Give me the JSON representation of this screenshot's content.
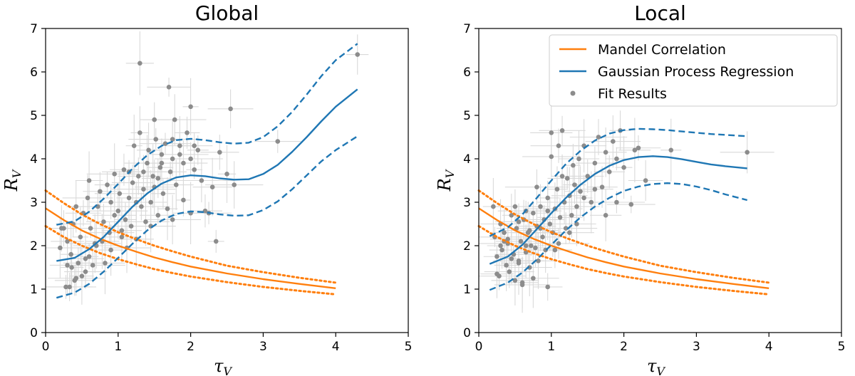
{
  "colors": {
    "mandel": "#ff7f0e",
    "gpr": "#1f77b4",
    "points": "#8c8c8c",
    "errorbars": "#d9d9d9"
  },
  "chart_data": [
    {
      "type": "scatter",
      "title": "Global",
      "xlabel": "τ",
      "xlabel_sub": "V",
      "ylabel": "R",
      "ylabel_sub": "V",
      "xlim": [
        0,
        5
      ],
      "ylim": [
        0,
        7
      ],
      "xticks": [
        "0",
        "1",
        "2",
        "3",
        "4",
        "5"
      ],
      "yticks": [
        "0",
        "1",
        "2",
        "3",
        "4",
        "5",
        "6",
        "7"
      ],
      "grid": false,
      "legend": null,
      "series": [
        {
          "name": "Mandel Correlation",
          "kind": "line",
          "style": "solid",
          "color": "#ff7f0e",
          "x": [
            0,
            0.25,
            0.5,
            0.75,
            1,
            1.25,
            1.5,
            1.75,
            2,
            2.5,
            3,
            3.5,
            4
          ],
          "y": [
            2.86,
            2.59,
            2.35,
            2.16,
            2.0,
            1.86,
            1.73,
            1.62,
            1.52,
            1.36,
            1.23,
            1.12,
            1.02
          ]
        },
        {
          "name": "Mandel Correlation upper",
          "kind": "line",
          "style": "dotted",
          "color": "#ff7f0e",
          "x": [
            0,
            0.25,
            0.5,
            0.75,
            1,
            1.25,
            1.5,
            1.75,
            2,
            2.5,
            3,
            3.5,
            4
          ],
          "y": [
            3.27,
            2.98,
            2.72,
            2.5,
            2.31,
            2.15,
            2.0,
            1.87,
            1.75,
            1.54,
            1.39,
            1.26,
            1.15
          ]
        },
        {
          "name": "Mandel Correlation lower",
          "kind": "line",
          "style": "dotted",
          "color": "#ff7f0e",
          "x": [
            0,
            0.25,
            0.5,
            0.75,
            1,
            1.25,
            1.5,
            1.75,
            2,
            2.5,
            3,
            3.5,
            4
          ],
          "y": [
            2.45,
            2.2,
            2.0,
            1.83,
            1.69,
            1.57,
            1.46,
            1.37,
            1.29,
            1.16,
            1.05,
            0.96,
            0.88
          ]
        },
        {
          "name": "Gaussian Process Regression",
          "kind": "line",
          "style": "solid",
          "color": "#1f77b4",
          "x": [
            0.15,
            0.4,
            0.6,
            0.8,
            1.0,
            1.2,
            1.4,
            1.6,
            1.8,
            2.0,
            2.2,
            2.4,
            2.6,
            2.8,
            3.0,
            3.2,
            3.4,
            3.6,
            3.8,
            4.0,
            4.3
          ],
          "y": [
            1.65,
            1.72,
            1.92,
            2.2,
            2.55,
            2.9,
            3.2,
            3.43,
            3.57,
            3.62,
            3.6,
            3.55,
            3.52,
            3.53,
            3.65,
            3.86,
            4.16,
            4.5,
            4.86,
            5.2,
            5.6
          ]
        },
        {
          "name": "Gaussian Process Regression upper",
          "kind": "line",
          "style": "dashed",
          "color": "#1f77b4",
          "x": [
            0.15,
            0.4,
            0.6,
            0.8,
            1.0,
            1.2,
            1.4,
            1.6,
            1.8,
            2.0,
            2.2,
            2.4,
            2.6,
            2.8,
            3.0,
            3.2,
            3.4,
            3.6,
            3.8,
            4.0,
            4.3
          ],
          "y": [
            2.48,
            2.56,
            2.78,
            3.08,
            3.42,
            3.78,
            4.08,
            4.3,
            4.43,
            4.46,
            4.43,
            4.38,
            4.35,
            4.37,
            4.5,
            4.75,
            5.08,
            5.48,
            5.9,
            6.27,
            6.65
          ]
        },
        {
          "name": "Gaussian Process Regression lower",
          "kind": "line",
          "style": "dashed",
          "color": "#1f77b4",
          "x": [
            0.15,
            0.4,
            0.6,
            0.8,
            1.0,
            1.2,
            1.4,
            1.6,
            1.8,
            2.0,
            2.2,
            2.4,
            2.6,
            2.8,
            3.0,
            3.2,
            3.4,
            3.6,
            3.8,
            4.0,
            4.3
          ],
          "y": [
            0.8,
            0.92,
            1.12,
            1.4,
            1.72,
            2.05,
            2.35,
            2.58,
            2.73,
            2.79,
            2.77,
            2.72,
            2.69,
            2.7,
            2.82,
            3.02,
            3.3,
            3.62,
            3.94,
            4.2,
            4.52
          ]
        },
        {
          "name": "Fit Results",
          "kind": "points",
          "color": "#8c8c8c",
          "x": [
            0.2,
            0.25,
            0.28,
            0.3,
            0.33,
            0.35,
            0.38,
            0.4,
            0.42,
            0.45,
            0.48,
            0.5,
            0.52,
            0.55,
            0.58,
            0.6,
            0.62,
            0.65,
            0.7,
            0.72,
            0.75,
            0.78,
            0.8,
            0.85,
            0.88,
            0.9,
            0.95,
            1.0,
            1.02,
            1.05,
            1.08,
            1.1,
            1.12,
            1.15,
            1.18,
            1.2,
            1.22,
            1.25,
            1.28,
            1.3,
            1.32,
            1.35,
            1.38,
            1.4,
            1.42,
            1.45,
            1.48,
            1.5,
            1.52,
            1.55,
            1.58,
            1.6,
            1.62,
            1.65,
            1.68,
            1.7,
            1.72,
            1.75,
            1.78,
            1.8,
            1.85,
            1.9,
            1.95,
            2.0,
            2.05,
            2.1,
            2.15,
            2.2,
            2.3,
            2.4,
            2.5,
            2.55,
            2.6,
            0.3,
            0.42,
            0.55,
            0.68,
            0.82,
            0.95,
            1.05,
            1.25,
            1.35,
            1.45,
            1.6,
            1.75,
            1.9,
            2.0,
            2.25,
            3.2,
            4.3,
            1.3,
            1.75,
            2.0,
            0.22,
            0.36,
            0.6,
            0.9,
            1.15,
            1.5,
            1.85,
            2.35,
            2.05,
            1.55
          ],
          "y": [
            1.95,
            2.4,
            1.05,
            2.1,
            1.05,
            1.8,
            2.5,
            1.2,
            2.9,
            1.6,
            2.2,
            1.3,
            2.75,
            1.4,
            3.1,
            1.75,
            2.4,
            1.55,
            2.0,
            2.9,
            3.25,
            2.1,
            2.55,
            3.4,
            2.3,
            1.9,
            3.65,
            2.8,
            3.2,
            2.35,
            3.75,
            2.6,
            1.95,
            3.1,
            2.45,
            3.45,
            4.3,
            2.15,
            3.6,
            4.6,
            2.9,
            3.3,
            2.55,
            3.9,
            4.2,
            3.0,
            3.6,
            3.35,
            4.45,
            2.7,
            3.8,
            4.1,
            3.2,
            4.35,
            2.85,
            5.65,
            3.7,
            4.0,
            4.9,
            3.4,
            4.3,
            3.9,
            4.6,
            5.2,
            3.75,
            4.2,
            3.5,
            2.8,
            3.35,
            4.15,
            3.65,
            5.15,
            3.4,
            1.55,
            1.25,
            1.7,
            2.05,
            1.6,
            2.7,
            2.2,
            3.0,
            3.7,
            2.45,
            3.9,
            2.6,
            3.05,
            2.75,
            2.75,
            4.4,
            6.4,
            6.2,
            4.45,
            4.0,
            2.4,
            1.5,
            3.5,
            3.0,
            3.7,
            4.9,
            4.1,
            2.1,
            4.3,
            3.55
          ]
        }
      ]
    },
    {
      "type": "scatter",
      "title": "Local",
      "xlabel": "τ",
      "xlabel_sub": "V",
      "ylabel": "R",
      "ylabel_sub": "V",
      "xlim": [
        0,
        5
      ],
      "ylim": [
        0,
        7
      ],
      "xticks": [
        "0",
        "1",
        "2",
        "3",
        "4",
        "5"
      ],
      "yticks": [
        "0",
        "1",
        "2",
        "3",
        "4",
        "5",
        "6",
        "7"
      ],
      "grid": false,
      "legend": "top-right",
      "legend_entries": [
        "Mandel Correlation",
        "Gaussian Process Regression",
        "Fit Results"
      ],
      "series": [
        {
          "name": "Mandel Correlation",
          "kind": "line",
          "style": "solid",
          "color": "#ff7f0e",
          "x": [
            0,
            0.25,
            0.5,
            0.75,
            1,
            1.25,
            1.5,
            1.75,
            2,
            2.5,
            3,
            3.5,
            4
          ],
          "y": [
            2.86,
            2.59,
            2.35,
            2.16,
            2.0,
            1.86,
            1.73,
            1.62,
            1.52,
            1.36,
            1.23,
            1.12,
            1.02
          ]
        },
        {
          "name": "Mandel Correlation upper",
          "kind": "line",
          "style": "dotted",
          "color": "#ff7f0e",
          "x": [
            0,
            0.25,
            0.5,
            0.75,
            1,
            1.25,
            1.5,
            1.75,
            2,
            2.5,
            3,
            3.5,
            4
          ],
          "y": [
            3.27,
            2.98,
            2.72,
            2.5,
            2.31,
            2.15,
            2.0,
            1.87,
            1.75,
            1.54,
            1.39,
            1.26,
            1.15
          ]
        },
        {
          "name": "Mandel Correlation lower",
          "kind": "line",
          "style": "dotted",
          "color": "#ff7f0e",
          "x": [
            0,
            0.25,
            0.5,
            0.75,
            1,
            1.25,
            1.5,
            1.75,
            2,
            2.5,
            3,
            3.5,
            4
          ],
          "y": [
            2.45,
            2.2,
            2.0,
            1.83,
            1.69,
            1.57,
            1.46,
            1.37,
            1.29,
            1.16,
            1.05,
            0.96,
            0.88
          ]
        },
        {
          "name": "Gaussian Process Regression",
          "kind": "line",
          "style": "solid",
          "color": "#1f77b4",
          "x": [
            0.15,
            0.4,
            0.6,
            0.8,
            1.0,
            1.2,
            1.4,
            1.6,
            1.8,
            2.0,
            2.2,
            2.4,
            2.6,
            2.8,
            3.0,
            3.2,
            3.4,
            3.7
          ],
          "y": [
            1.58,
            1.75,
            2.02,
            2.38,
            2.75,
            3.1,
            3.4,
            3.65,
            3.84,
            3.97,
            4.04,
            4.06,
            4.04,
            3.99,
            3.93,
            3.87,
            3.83,
            3.78
          ]
        },
        {
          "name": "Gaussian Process Regression upper",
          "kind": "line",
          "style": "dashed",
          "color": "#1f77b4",
          "x": [
            0.15,
            0.4,
            0.6,
            0.8,
            1.0,
            1.2,
            1.4,
            1.6,
            1.8,
            2.0,
            2.2,
            2.4,
            2.6,
            2.8,
            3.0,
            3.2,
            3.4,
            3.7
          ],
          "y": [
            2.22,
            2.42,
            2.72,
            3.1,
            3.5,
            3.88,
            4.18,
            4.42,
            4.58,
            4.66,
            4.69,
            4.68,
            4.66,
            4.63,
            4.6,
            4.57,
            4.55,
            4.52
          ]
        },
        {
          "name": "Gaussian Process Regression lower",
          "kind": "line",
          "style": "dashed",
          "color": "#1f77b4",
          "x": [
            0.15,
            0.4,
            0.6,
            0.8,
            1.0,
            1.2,
            1.4,
            1.6,
            1.8,
            2.0,
            2.2,
            2.4,
            2.6,
            2.8,
            3.0,
            3.2,
            3.4,
            3.7
          ],
          "y": [
            0.98,
            1.15,
            1.38,
            1.68,
            2.02,
            2.35,
            2.65,
            2.9,
            3.1,
            3.26,
            3.36,
            3.42,
            3.44,
            3.42,
            3.36,
            3.28,
            3.18,
            3.05
          ]
        },
        {
          "name": "Fit Results",
          "kind": "points",
          "color": "#8c8c8c",
          "x": [
            0.2,
            0.22,
            0.25,
            0.28,
            0.3,
            0.32,
            0.35,
            0.38,
            0.4,
            0.42,
            0.45,
            0.48,
            0.5,
            0.52,
            0.55,
            0.58,
            0.6,
            0.62,
            0.65,
            0.68,
            0.7,
            0.72,
            0.75,
            0.78,
            0.8,
            0.82,
            0.85,
            0.88,
            0.9,
            0.92,
            0.95,
            0.98,
            1.0,
            1.02,
            1.05,
            1.08,
            1.1,
            1.12,
            1.15,
            1.18,
            1.2,
            1.22,
            1.25,
            1.28,
            1.3,
            1.32,
            1.35,
            1.38,
            1.4,
            1.45,
            1.5,
            1.55,
            1.6,
            1.65,
            1.7,
            1.75,
            1.8,
            1.85,
            1.9,
            1.95,
            2.0,
            2.1,
            2.2,
            2.3,
            0.25,
            0.35,
            0.45,
            0.55,
            0.65,
            0.75,
            0.85,
            0.95,
            1.05,
            1.15,
            1.25,
            1.35,
            1.45,
            1.6,
            1.75,
            1.9,
            0.7,
            0.95,
            1.1,
            0.3,
            0.5,
            0.6,
            0.8,
            1.0,
            3.7,
            2.15,
            2.65,
            0.4,
            0.55,
            0.65
          ],
          "y": [
            2.9,
            2.2,
            1.75,
            1.3,
            2.5,
            1.9,
            2.3,
            1.55,
            2.05,
            1.4,
            2.7,
            1.8,
            1.2,
            2.4,
            1.6,
            2.1,
            1.1,
            2.6,
            1.85,
            2.3,
            1.5,
            2.0,
            2.75,
            1.95,
            2.45,
            1.65,
            2.9,
            2.2,
            2.6,
            1.9,
            3.1,
            2.5,
            4.6,
            2.3,
            2.85,
            3.3,
            2.05,
            2.65,
            4.65,
            3.0,
            2.4,
            3.55,
            3.15,
            2.7,
            3.85,
            3.4,
            2.9,
            4.0,
            3.25,
            4.3,
            3.6,
            3.0,
            3.9,
            4.5,
            3.35,
            4.15,
            3.7,
            4.4,
            4.0,
            4.65,
            3.8,
            2.95,
            4.25,
            3.5,
            1.35,
            2.1,
            1.7,
            2.55,
            2.0,
            1.25,
            2.4,
            2.8,
            1.9,
            3.6,
            2.3,
            2.5,
            3.1,
            3.3,
            2.7,
            3.0,
            2.35,
            1.05,
            4.3,
            2.0,
            2.9,
            1.15,
            3.35,
            4.05,
            4.15,
            4.2,
            4.2,
            2.15,
            1.65,
            2.8
          ]
        }
      ]
    }
  ]
}
